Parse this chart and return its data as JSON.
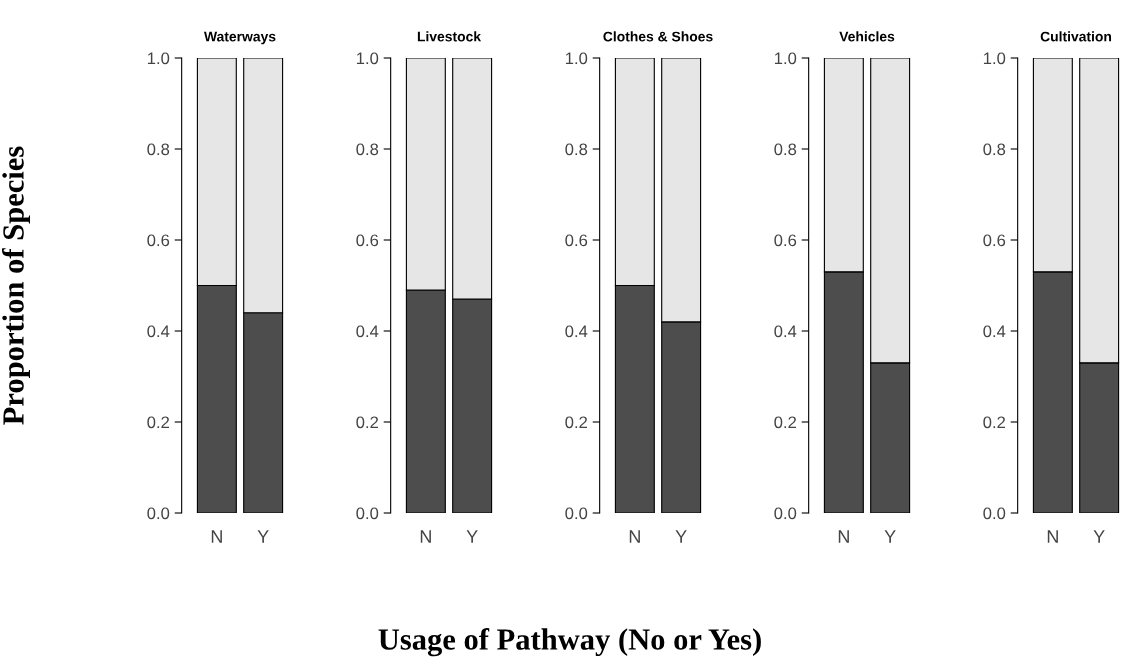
{
  "chart_data": [
    {
      "type": "bar",
      "title": "Waterways",
      "ylabel": "Proportion of Species",
      "categories": [
        "N",
        "Y"
      ],
      "stacked": true,
      "ylim": [
        0,
        1
      ],
      "yticks": [
        {
          "value": 0,
          "label": "0.0"
        },
        {
          "value": 0.2,
          "label": "0.2"
        },
        {
          "value": 0.4,
          "label": "0.4"
        },
        {
          "value": 0.6,
          "label": "0.6"
        },
        {
          "value": 0.8,
          "label": "0.8"
        },
        {
          "value": 1,
          "label": "1.0"
        }
      ],
      "grid": false,
      "legend": false,
      "series": [
        {
          "color": "#4d4d4d",
          "values": [
            0.5,
            0.44
          ]
        },
        {
          "color": "#e6e6e6",
          "values": [
            0.5,
            0.56
          ]
        }
      ]
    },
    {
      "type": "bar",
      "title": "Livestock",
      "categories": [
        "N",
        "Y"
      ],
      "stacked": true,
      "ylim": [
        0,
        1
      ],
      "yticks": [
        {
          "value": 0,
          "label": "0.0"
        },
        {
          "value": 0.2,
          "label": "0.2"
        },
        {
          "value": 0.4,
          "label": "0.4"
        },
        {
          "value": 0.6,
          "label": "0.6"
        },
        {
          "value": 0.8,
          "label": "0.8"
        },
        {
          "value": 1,
          "label": "1.0"
        }
      ],
      "grid": false,
      "legend": false,
      "series": [
        {
          "color": "#4d4d4d",
          "values": [
            0.49,
            0.47
          ]
        },
        {
          "color": "#e6e6e6",
          "values": [
            0.51,
            0.53
          ]
        }
      ]
    },
    {
      "type": "bar",
      "title": "Clothes & Shoes",
      "xlabel": "Usage of Pathway (No or Yes)",
      "categories": [
        "N",
        "Y"
      ],
      "stacked": true,
      "ylim": [
        0,
        1
      ],
      "yticks": [
        {
          "value": 0,
          "label": "0.0"
        },
        {
          "value": 0.2,
          "label": "0.2"
        },
        {
          "value": 0.4,
          "label": "0.4"
        },
        {
          "value": 0.6,
          "label": "0.6"
        },
        {
          "value": 0.8,
          "label": "0.8"
        },
        {
          "value": 1,
          "label": "1.0"
        }
      ],
      "grid": false,
      "legend": false,
      "series": [
        {
          "color": "#4d4d4d",
          "values": [
            0.5,
            0.42
          ]
        },
        {
          "color": "#e6e6e6",
          "values": [
            0.5,
            0.58
          ]
        }
      ]
    },
    {
      "type": "bar",
      "title": "Vehicles",
      "categories": [
        "N",
        "Y"
      ],
      "stacked": true,
      "ylim": [
        0,
        1
      ],
      "yticks": [
        {
          "value": 0,
          "label": "0.0"
        },
        {
          "value": 0.2,
          "label": "0.2"
        },
        {
          "value": 0.4,
          "label": "0.4"
        },
        {
          "value": 0.6,
          "label": "0.6"
        },
        {
          "value": 0.8,
          "label": "0.8"
        },
        {
          "value": 1,
          "label": "1.0"
        }
      ],
      "grid": false,
      "legend": false,
      "series": [
        {
          "color": "#4d4d4d",
          "values": [
            0.53,
            0.33
          ]
        },
        {
          "color": "#e6e6e6",
          "values": [
            0.47,
            0.67
          ]
        }
      ]
    },
    {
      "type": "bar",
      "title": "Cultivation",
      "categories": [
        "N",
        "Y"
      ],
      "stacked": true,
      "ylim": [
        0,
        1
      ],
      "yticks": [
        {
          "value": 0,
          "label": "0.0"
        },
        {
          "value": 0.2,
          "label": "0.2"
        },
        {
          "value": 0.4,
          "label": "0.4"
        },
        {
          "value": 0.6,
          "label": "0.6"
        },
        {
          "value": 0.8,
          "label": "0.8"
        },
        {
          "value": 1,
          "label": "1.0"
        }
      ],
      "grid": false,
      "legend": false,
      "series": [
        {
          "color": "#4d4d4d",
          "values": [
            0.53,
            0.33
          ]
        },
        {
          "color": "#e6e6e6",
          "values": [
            0.47,
            0.67
          ]
        }
      ]
    }
  ]
}
